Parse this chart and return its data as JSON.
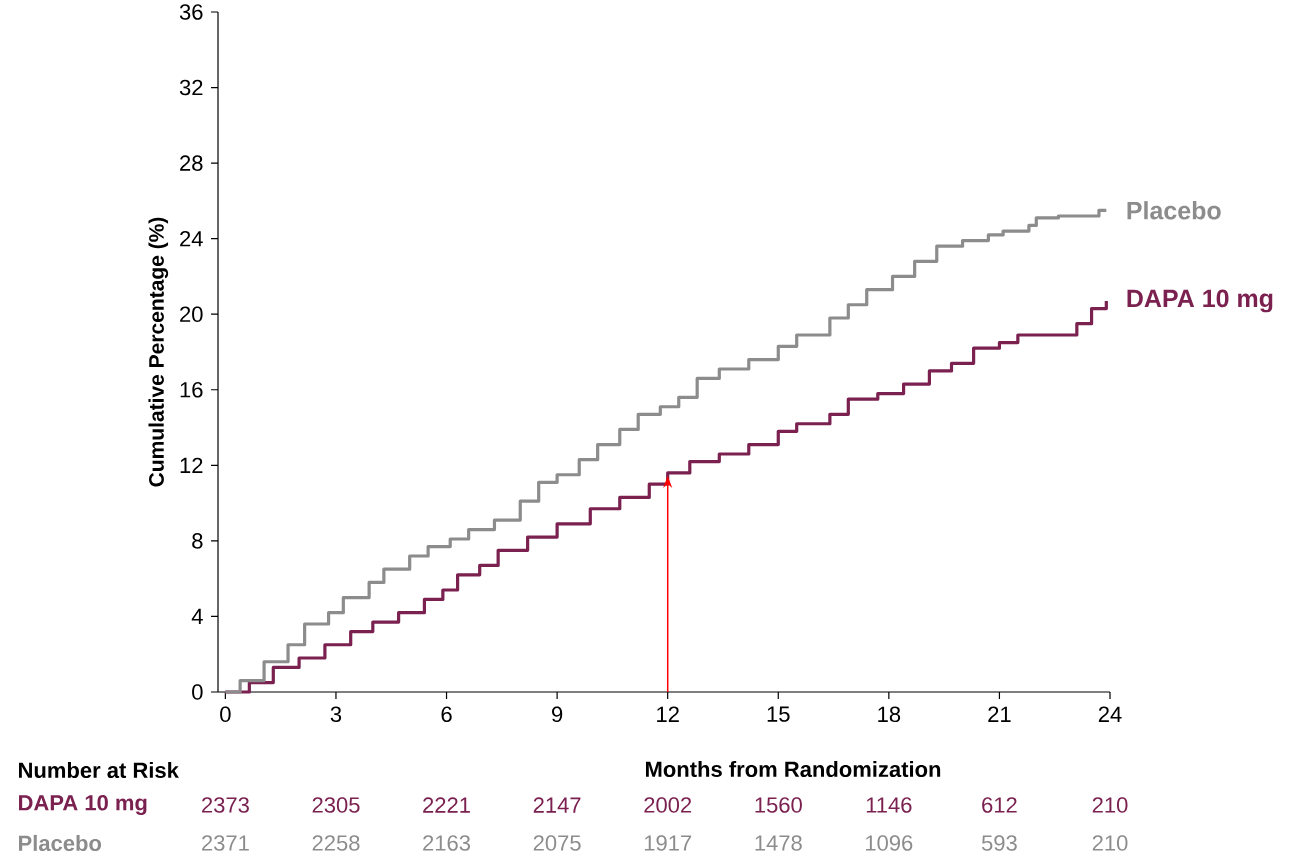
{
  "chart_data": {
    "type": "step",
    "ylabel": "Cumulative Percentage (%)",
    "xlabel": "Months from Randomization",
    "xlim": [
      -0.2,
      24
    ],
    "xticks": [
      0,
      3,
      6,
      9,
      12,
      15,
      18,
      21,
      24
    ],
    "ylim": [
      0,
      36
    ],
    "yticks": [
      0,
      4,
      8,
      12,
      16,
      20,
      24,
      28,
      32,
      36
    ],
    "legend": false,
    "grid": false,
    "series": [
      {
        "name": "DAPA 10 mg",
        "color": "#7b2150",
        "x": [
          0,
          0.65,
          1.3,
          2.0,
          2.7,
          3.4,
          4.0,
          4.7,
          5.4,
          5.9,
          6.3,
          6.9,
          7.4,
          8.2,
          9.0,
          9.9,
          10.7,
          11.5,
          12.0,
          12.6,
          13.4,
          14.2,
          15.0,
          15.5,
          16.4,
          16.9,
          17.7,
          18.4,
          19.1,
          19.7,
          20.3,
          21.0,
          21.5,
          22.6,
          23.1,
          23.5,
          23.9
        ],
        "values": [
          0,
          0.5,
          1.3,
          1.8,
          2.5,
          3.2,
          3.7,
          4.2,
          4.9,
          5.4,
          6.2,
          6.7,
          7.5,
          8.2,
          8.9,
          9.7,
          10.3,
          11.0,
          11.6,
          12.2,
          12.6,
          13.1,
          13.8,
          14.2,
          14.7,
          15.5,
          15.8,
          16.3,
          17.0,
          17.4,
          18.2,
          18.5,
          18.9,
          18.9,
          19.5,
          20.3,
          20.7
        ]
      },
      {
        "name": "Placebo",
        "color": "#8c8c8c",
        "x": [
          0,
          0.4,
          1.05,
          1.7,
          2.15,
          2.8,
          3.2,
          3.9,
          4.3,
          5.0,
          5.5,
          6.1,
          6.6,
          7.3,
          8.0,
          8.5,
          9.0,
          9.6,
          10.1,
          10.7,
          11.2,
          11.8,
          12.3,
          12.8,
          13.4,
          14.2,
          15.0,
          15.5,
          16.4,
          16.9,
          17.4,
          18.1,
          18.7,
          19.3,
          20.0,
          20.7,
          21.1,
          21.8,
          22.0,
          22.6,
          23.5,
          23.7,
          23.9
        ],
        "values": [
          0,
          0.6,
          1.6,
          2.5,
          3.6,
          4.2,
          5.0,
          5.8,
          6.5,
          7.2,
          7.7,
          8.1,
          8.6,
          9.1,
          10.1,
          11.1,
          11.5,
          12.3,
          13.1,
          13.9,
          14.7,
          15.1,
          15.6,
          16.6,
          17.1,
          17.6,
          18.3,
          18.9,
          19.8,
          20.5,
          21.3,
          22.0,
          22.8,
          23.6,
          23.9,
          24.2,
          24.4,
          24.7,
          25.1,
          25.2,
          25.2,
          25.5,
          25.5
        ]
      }
    ],
    "ref_lines": [
      {
        "axis": "x",
        "value": 12,
        "color": "#ff0000"
      }
    ],
    "annotations": [
      "Number at Risk",
      "DAPA 10 mg",
      "2373",
      "2305",
      "2221",
      "2147",
      "2002",
      "1560",
      "1146",
      "612",
      "210",
      "Placebo",
      "2371",
      "2258",
      "2163",
      "2075",
      "1917",
      "1478",
      "1096",
      "593",
      "210"
    ]
  }
}
